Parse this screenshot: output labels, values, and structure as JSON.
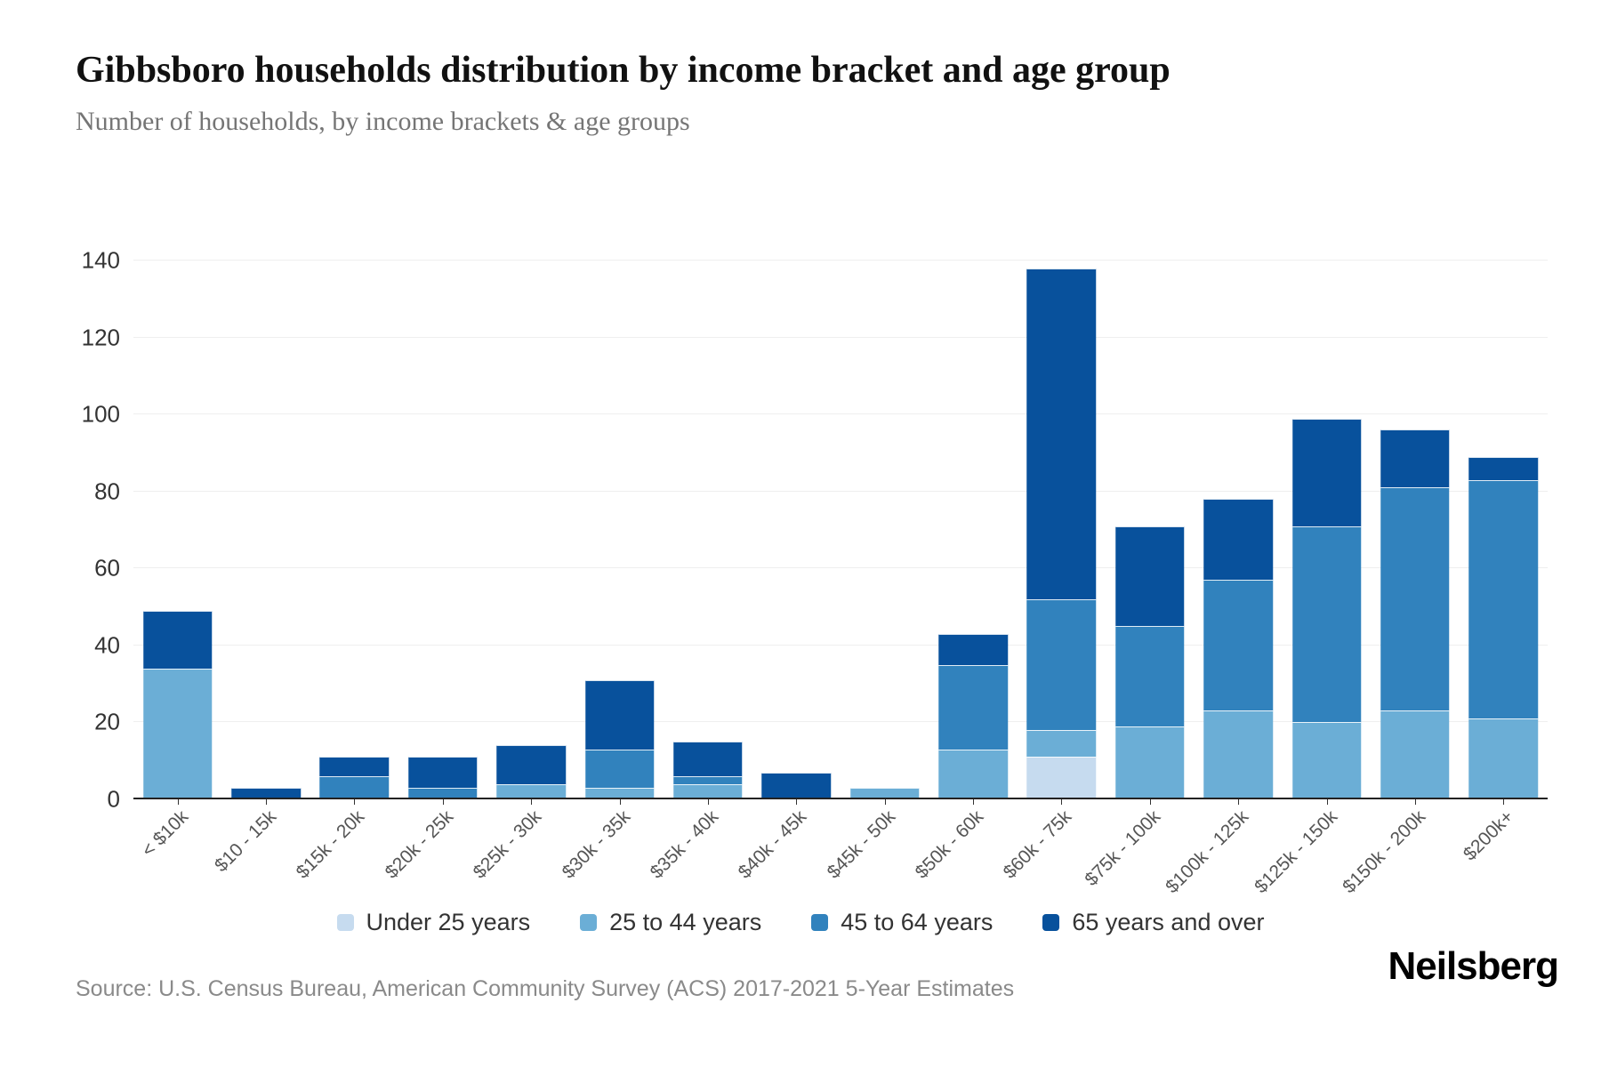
{
  "header": {
    "title": "Gibbsboro households distribution by income bracket and age group",
    "subtitle": "Number of households, by income brackets & age groups"
  },
  "footer": {
    "source": "Source: U.S. Census Bureau, American Community Survey (ACS) 2017-2021 5-Year Estimates",
    "logo": "Neilsberg"
  },
  "chart_data": {
    "type": "bar",
    "stacked": true,
    "title": "Gibbsboro households distribution by income bracket and age group",
    "xlabel": "",
    "ylabel": "Number of households",
    "ylim": [
      0,
      140
    ],
    "yticks": [
      0,
      20,
      40,
      60,
      80,
      100,
      120,
      140
    ],
    "grid": "horizontal",
    "legend_position": "bottom",
    "categories": [
      "< $10k",
      "$10 - 15k",
      "$15k - 20k",
      "$20k - 25k",
      "$25k - 30k",
      "$30k - 35k",
      "$35k - 40k",
      "$40k - 45k",
      "$45k - 50k",
      "$50k - 60k",
      "$60k - 75k",
      "$75k - 100k",
      "$100k - 125k",
      "$125k - 150k",
      "$150k - 200k",
      "$200k+"
    ],
    "series": [
      {
        "name": "Under 25 years",
        "color": "#c6dbef",
        "values": [
          0,
          0,
          0,
          0,
          0,
          0,
          0,
          0,
          0,
          0,
          11,
          0,
          0,
          0,
          0,
          0
        ]
      },
      {
        "name": "25 to 44 years",
        "color": "#6baed6",
        "values": [
          34,
          0,
          0,
          0,
          4,
          3,
          4,
          0,
          3,
          13,
          7,
          19,
          23,
          20,
          23,
          21
        ]
      },
      {
        "name": "45 to 64 years",
        "color": "#3182bd",
        "values": [
          0,
          0,
          6,
          3,
          0,
          10,
          2,
          0,
          0,
          22,
          34,
          26,
          34,
          51,
          58,
          62
        ]
      },
      {
        "name": "65 years and over",
        "color": "#08519c",
        "values": [
          15,
          3,
          5,
          8,
          10,
          18,
          9,
          7,
          0,
          8,
          86,
          26,
          21,
          28,
          15,
          6
        ]
      }
    ],
    "totals": [
      49,
      3,
      11,
      11,
      14,
      31,
      15,
      7,
      3,
      43,
      138,
      71,
      78,
      99,
      96,
      89
    ]
  }
}
